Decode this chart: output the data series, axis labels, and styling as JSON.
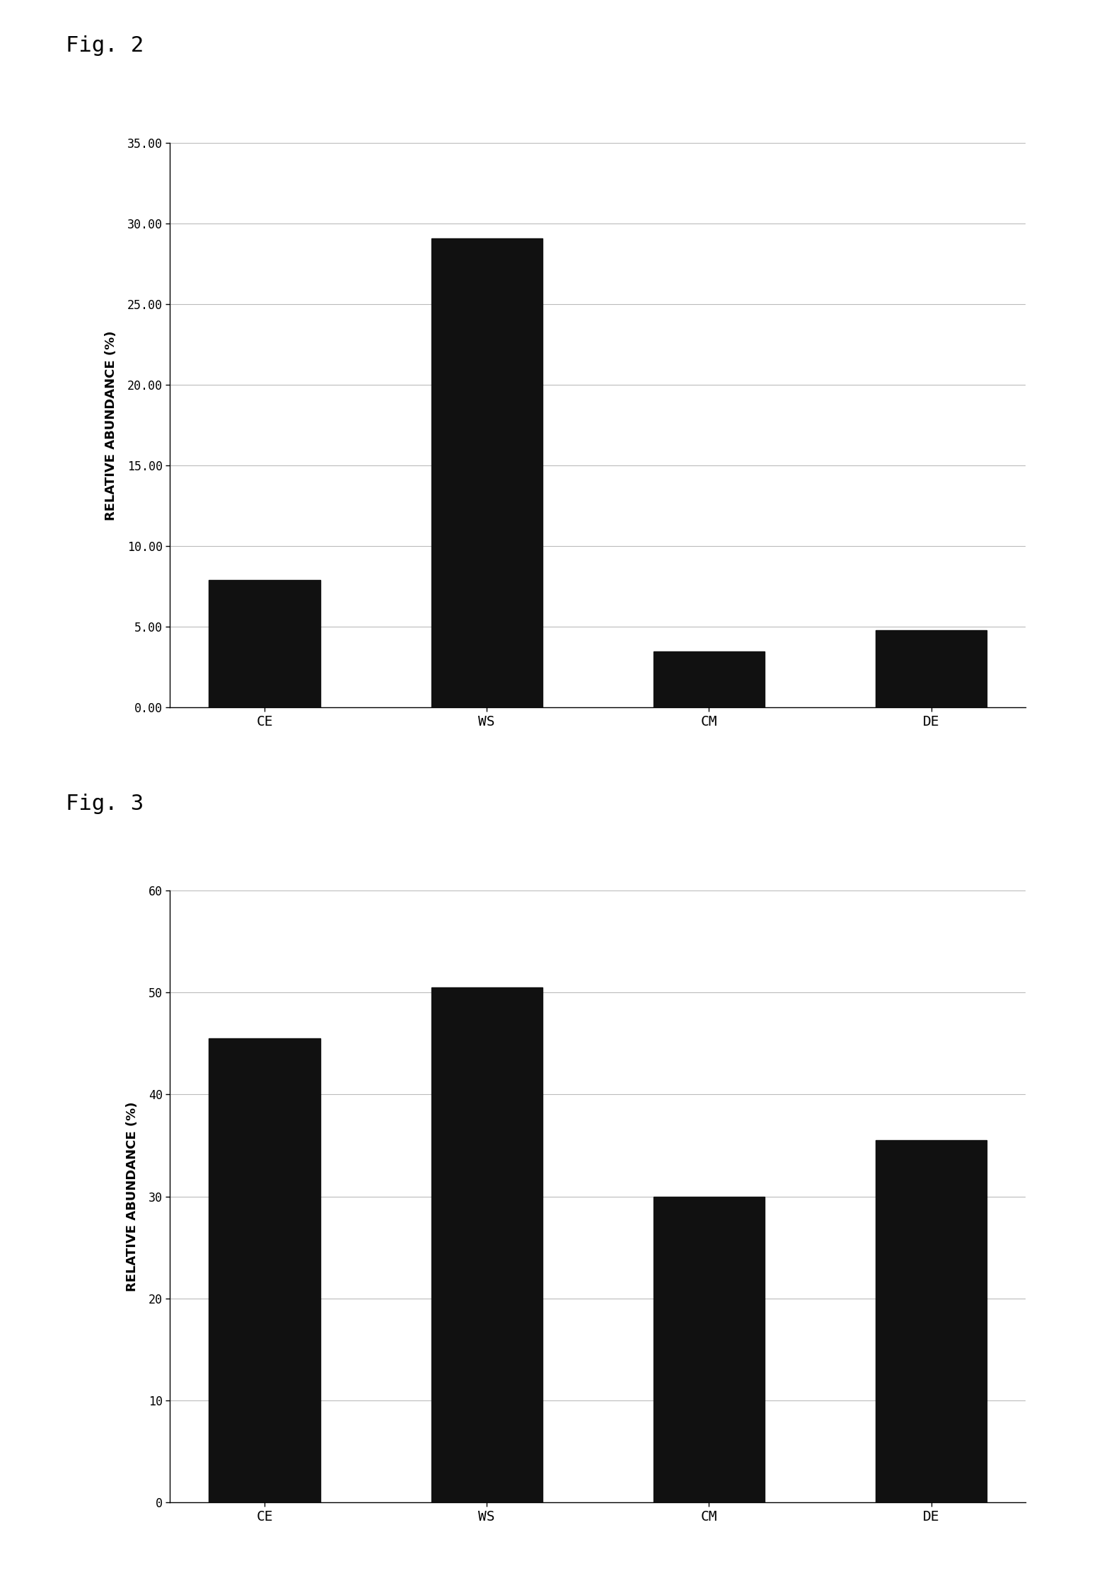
{
  "fig2": {
    "label": "Fig. 2",
    "categories": [
      "CE",
      "WS",
      "CM",
      "DE"
    ],
    "values": [
      7.9,
      29.1,
      3.5,
      4.8
    ],
    "ylabel": "RELATIVE ABUNDANCE (%)",
    "ylim": [
      0,
      35
    ],
    "yticks": [
      0.0,
      5.0,
      10.0,
      15.0,
      20.0,
      25.0,
      30.0,
      35.0
    ],
    "ytick_labels": [
      "0.00",
      "5.00",
      "10.00",
      "15.00",
      "20.00",
      "25.00",
      "30.00",
      "35.00"
    ],
    "bar_color": "#111111",
    "bar_width": 0.5
  },
  "fig3": {
    "label": "Fig. 3",
    "categories": [
      "CE",
      "WS",
      "CM",
      "DE"
    ],
    "values": [
      45.5,
      50.5,
      30.0,
      35.5
    ],
    "ylabel": "RELATIVE ABUNDANCE (%)",
    "ylim": [
      0,
      60
    ],
    "yticks": [
      0,
      10,
      20,
      30,
      40,
      50,
      60
    ],
    "ytick_labels": [
      "0",
      "10",
      "20",
      "30",
      "40",
      "50",
      "60"
    ],
    "bar_color": "#111111",
    "bar_width": 0.5
  },
  "background_color": "#ffffff",
  "fig_label_fontsize": 22,
  "axis_label_fontsize": 13,
  "tick_fontsize": 12,
  "xtick_fontsize": 14,
  "grid_color": "#bbbbbb",
  "grid_linewidth": 0.8
}
